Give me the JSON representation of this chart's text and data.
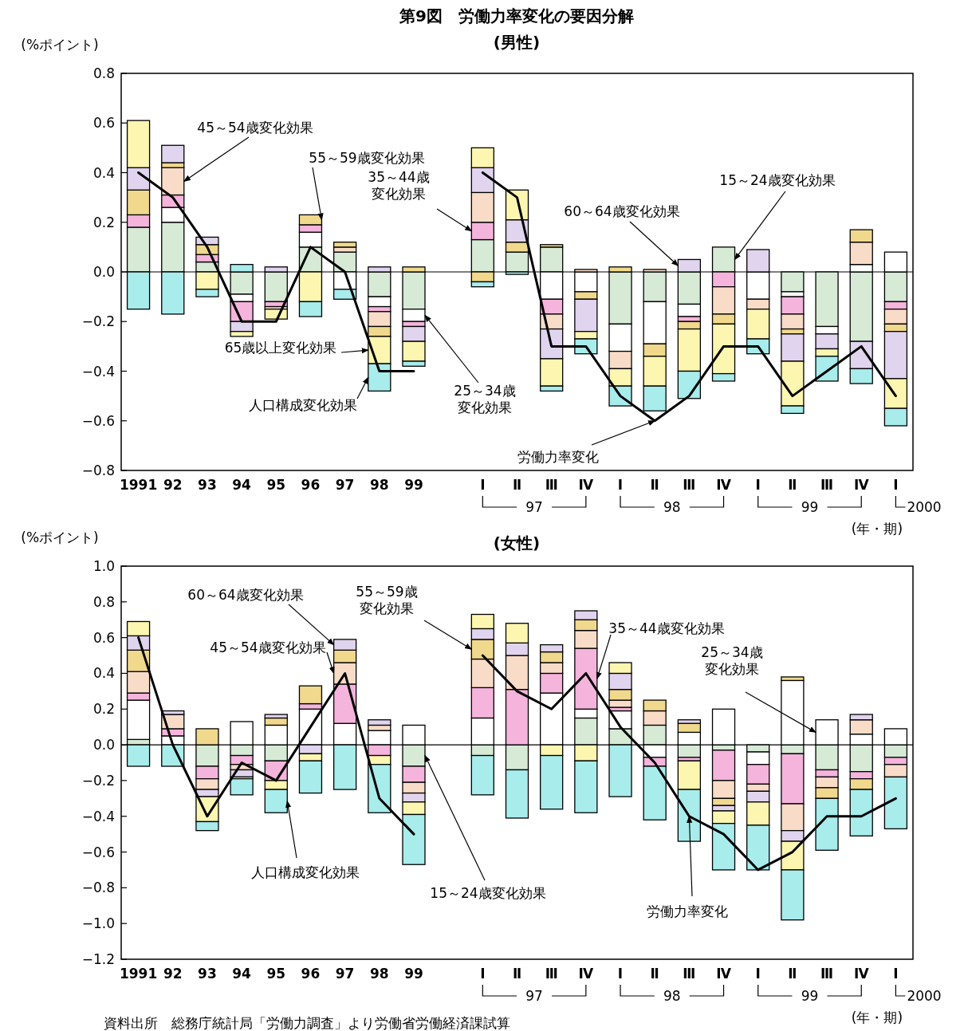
{
  "chart_data": [
    {
      "type": "bar",
      "title": "第9図　労働力率変化の要因分解",
      "subtitle": "(男性)",
      "ylabel": "(%ポイント)",
      "stacked": true,
      "categories": [
        "1991",
        "92",
        "93",
        "94",
        "95",
        "96",
        "97",
        "98",
        "99",
        null,
        "Ⅰ",
        "Ⅱ",
        "Ⅲ",
        "Ⅳ",
        "Ⅰ",
        "Ⅱ",
        "Ⅲ",
        "Ⅳ",
        "Ⅰ",
        "Ⅱ",
        "Ⅲ",
        "Ⅳ",
        "Ⅰ"
      ],
      "ylim": [
        -0.8,
        0.8
      ],
      "yticks": [
        {
          "value": -0.8,
          "label": "−0.8"
        },
        {
          "value": -0.6,
          "label": "−0.6"
        },
        {
          "value": -0.4,
          "label": "−0.4"
        },
        {
          "value": -0.2,
          "label": "−0.2"
        },
        {
          "value": 0,
          "label": "0.0"
        },
        {
          "value": 0.2,
          "label": "0.2"
        },
        {
          "value": 0.4,
          "label": "0.4"
        },
        {
          "value": 0.6,
          "label": "0.6"
        },
        {
          "value": 0.8,
          "label": "0.8"
        }
      ],
      "ref_lines": [
        {
          "axis": "y",
          "value": 0,
          "color": "#000000"
        }
      ],
      "series": [
        {
          "name": "15～24歳変化効果",
          "color": "#d6ead6",
          "values": [
            0.18,
            0.2,
            0.04,
            -0.09,
            -0.12,
            0.1,
            0.08,
            -0.1,
            -0.15,
            null,
            0.13,
            0.08,
            0.1,
            0,
            -0.21,
            -0.12,
            -0.13,
            0.1,
            0,
            -0.08,
            -0.22,
            -0.28,
            -0.12
          ]
        },
        {
          "name": "25～34歳変化効果",
          "color": "#ffffff",
          "values": [
            0,
            0.06,
            0,
            -0.03,
            0,
            0.06,
            -0.07,
            -0.04,
            -0.05,
            null,
            0,
            0,
            -0.11,
            -0.08,
            -0.11,
            -0.17,
            -0.05,
            0,
            -0.11,
            -0.02,
            -0.03,
            0.03,
            0.08
          ]
        },
        {
          "name": "35～44歳変化効果",
          "color": "#f4b4dc",
          "values": [
            0.05,
            0.05,
            0.03,
            -0.08,
            -0.02,
            0.03,
            0,
            -0.02,
            -0.02,
            null,
            0.07,
            0,
            -0.06,
            0,
            0,
            0,
            -0.02,
            -0.06,
            0,
            -0.07,
            0,
            0,
            -0.03
          ]
        },
        {
          "name": "45～54歳変化効果",
          "color": "#f8dcc8",
          "values": [
            0,
            0.11,
            0,
            0,
            -0.01,
            0,
            0.02,
            -0.06,
            0,
            null,
            0.12,
            0,
            -0.06,
            0.01,
            -0.07,
            0.01,
            0,
            -0.11,
            -0.04,
            -0.06,
            0,
            0.09,
            -0.06
          ]
        },
        {
          "name": "55～59歳変化効果",
          "color": "#f0d88c",
          "values": [
            0.1,
            0.02,
            0.04,
            0,
            0,
            0.04,
            0.02,
            -0.04,
            0.02,
            null,
            -0.04,
            0.04,
            0.01,
            -0.03,
            0.02,
            -0.05,
            -0.03,
            -0.04,
            0,
            -0.02,
            0,
            0.05,
            -0.03
          ]
        },
        {
          "name": "60～64歳変化効果",
          "color": "#e0d4ee",
          "values": [
            0.09,
            0.07,
            0.03,
            -0.04,
            0.02,
            0,
            0,
            0.02,
            -0.06,
            null,
            0.1,
            0.09,
            -0.12,
            -0.13,
            0,
            0,
            0.05,
            0,
            0.09,
            -0.11,
            -0.06,
            -0.11,
            -0.19
          ]
        },
        {
          "name": "65歳以上変化効果",
          "color": "#fcf6b0",
          "values": [
            0.19,
            0,
            -0.07,
            -0.02,
            -0.04,
            -0.12,
            0,
            -0.11,
            -0.08,
            null,
            0.08,
            0.12,
            -0.11,
            -0.03,
            -0.07,
            -0.12,
            -0.17,
            -0.2,
            -0.12,
            -0.18,
            -0.03,
            0,
            -0.12
          ]
        },
        {
          "name": "人口構成変化効果",
          "color": "#a8ecec",
          "values": [
            -0.15,
            -0.17,
            -0.03,
            0.03,
            0,
            -0.06,
            -0.04,
            -0.11,
            -0.02,
            null,
            -0.02,
            -0.01,
            -0.02,
            -0.06,
            -0.08,
            -0.1,
            -0.11,
            -0.03,
            -0.06,
            -0.03,
            -0.1,
            -0.06,
            -0.07
          ]
        },
        {
          "name": "労働力率変化",
          "type": "line",
          "color": "#000000",
          "values": [
            0.4,
            0.3,
            0.1,
            -0.2,
            -0.2,
            0.1,
            0.0,
            -0.4,
            -0.4,
            null,
            0.4,
            0.3,
            -0.3,
            -0.3,
            -0.5,
            -0.6,
            -0.5,
            -0.3,
            -0.3,
            -0.5,
            -0.4,
            -0.3,
            -0.5
          ]
        }
      ],
      "annotations": [
        "97",
        "98",
        "99",
        "2000",
        "(年・期)"
      ]
    },
    {
      "type": "bar",
      "title": "(女性)",
      "ylabel": "(%ポイント)",
      "stacked": true,
      "categories": [
        "1991",
        "92",
        "93",
        "94",
        "95",
        "96",
        "97",
        "98",
        "99",
        null,
        "Ⅰ",
        "Ⅱ",
        "Ⅲ",
        "Ⅳ",
        "Ⅰ",
        "Ⅱ",
        "Ⅲ",
        "Ⅳ",
        "Ⅰ",
        "Ⅱ",
        "Ⅲ",
        "Ⅳ",
        "Ⅰ"
      ],
      "ylim": [
        -1.2,
        1.0
      ],
      "yticks": [
        {
          "value": -1.2,
          "label": "−1.2"
        },
        {
          "value": -1.0,
          "label": "−1.0"
        },
        {
          "value": -0.8,
          "label": "−0.8"
        },
        {
          "value": -0.6,
          "label": "−0.6"
        },
        {
          "value": -0.4,
          "label": "−0.4"
        },
        {
          "value": -0.2,
          "label": "−0.2"
        },
        {
          "value": 0,
          "label": "0.0"
        },
        {
          "value": 0.2,
          "label": "0.2"
        },
        {
          "value": 0.4,
          "label": "0.4"
        },
        {
          "value": 0.6,
          "label": "0.6"
        },
        {
          "value": 0.8,
          "label": "0.8"
        },
        {
          "value": 1.0,
          "label": "1.0"
        }
      ],
      "ref_lines": [
        {
          "axis": "y",
          "value": 0,
          "color": "#000000"
        }
      ],
      "series": [
        {
          "name": "15～24歳変化効果",
          "color": "#d6ead6",
          "values": [
            0.03,
            null,
            -0.12,
            -0.06,
            -0.09,
            0,
            0,
            0,
            -0.12,
            null,
            -0.06,
            -0.14,
            0,
            0.15,
            0.09,
            0.11,
            -0.07,
            -0.03,
            -0.04,
            -0.05,
            -0.14,
            -0.15,
            -0.07
          ]
        },
        {
          "name": "25～34歳変化効果",
          "color": "#ffffff",
          "values": [
            0.22,
            0.05,
            0,
            0.13,
            0.11,
            0.2,
            0.12,
            0.08,
            0.11,
            null,
            0.15,
            0,
            0.29,
            0.05,
            0.1,
            -0.07,
            0.07,
            0.2,
            -0.07,
            0.36,
            0.14,
            0.06,
            0.09
          ]
        },
        {
          "name": "35～44歳変化効果",
          "color": "#f4b4dc",
          "values": [
            0.04,
            0.04,
            -0.07,
            -0.05,
            -0.11,
            0.03,
            0.22,
            -0.06,
            -0.09,
            null,
            0.17,
            0.31,
            0.11,
            0.34,
            0.02,
            -0.05,
            -0.02,
            -0.17,
            -0.11,
            -0.28,
            -0.04,
            -0.04,
            -0.04
          ]
        },
        {
          "name": "45～54歳変化効果",
          "color": "#f8dcc8",
          "values": [
            0.12,
            0.08,
            -0.06,
            -0.03,
            0,
            0,
            0.12,
            0.03,
            -0.06,
            null,
            0.16,
            0.19,
            0.06,
            0.1,
            0.04,
            0.08,
            0,
            -0.1,
            -0.04,
            -0.15,
            -0.06,
            0.08,
            -0.07
          ]
        },
        {
          "name": "55～59歳変化効果",
          "color": "#f0d88c",
          "values": [
            0.12,
            0,
            0.09,
            0,
            0.04,
            0.1,
            0.07,
            0,
            0,
            null,
            0.11,
            0,
            0.06,
            0.06,
            0.06,
            0.06,
            0.05,
            -0.04,
            0,
            0.02,
            -0.06,
            -0.06,
            0
          ]
        },
        {
          "name": "60～64歳変化効果",
          "color": "#e0d4ee",
          "values": [
            0.08,
            0.02,
            -0.04,
            -0.04,
            0.02,
            -0.05,
            0.06,
            0.03,
            -0.05,
            null,
            0.06,
            0.07,
            0.04,
            0.05,
            0.09,
            0,
            0.02,
            -0.03,
            -0.06,
            -0.06,
            0,
            0.03,
            0
          ]
        },
        {
          "color": "#fcf6b0",
          "values": [
            0.08,
            0,
            -0.14,
            -0.01,
            -0.05,
            -0.04,
            0,
            -0.05,
            -0.07,
            null,
            0.08,
            0.11,
            -0.06,
            -0.09,
            0.06,
            0,
            -0.16,
            -0.07,
            -0.13,
            -0.16,
            0,
            0,
            0
          ]
        },
        {
          "name": "人口構成変化効果",
          "color": "#a8ecec",
          "values": [
            -0.12,
            -0.12,
            -0.05,
            -0.09,
            -0.13,
            -0.18,
            -0.25,
            -0.27,
            -0.28,
            null,
            -0.22,
            -0.27,
            -0.3,
            -0.29,
            -0.29,
            -0.3,
            -0.29,
            -0.26,
            -0.25,
            -0.28,
            -0.29,
            -0.26,
            -0.29
          ]
        },
        {
          "name": "労働力率変化",
          "type": "line",
          "color": "#000000",
          "values": [
            0.6,
            0.0,
            -0.4,
            -0.1,
            -0.2,
            0.1,
            0.4,
            -0.3,
            -0.5,
            null,
            0.5,
            0.3,
            0.2,
            0.4,
            0.1,
            -0.1,
            -0.4,
            -0.5,
            -0.7,
            -0.6,
            -0.4,
            -0.4,
            -0.3
          ]
        }
      ],
      "annotations": [
        "97",
        "98",
        "99",
        "2000",
        "(年・期)",
        "資料出所　総務庁統計局「労働力調査」より労働省労働経済課試算"
      ]
    }
  ]
}
